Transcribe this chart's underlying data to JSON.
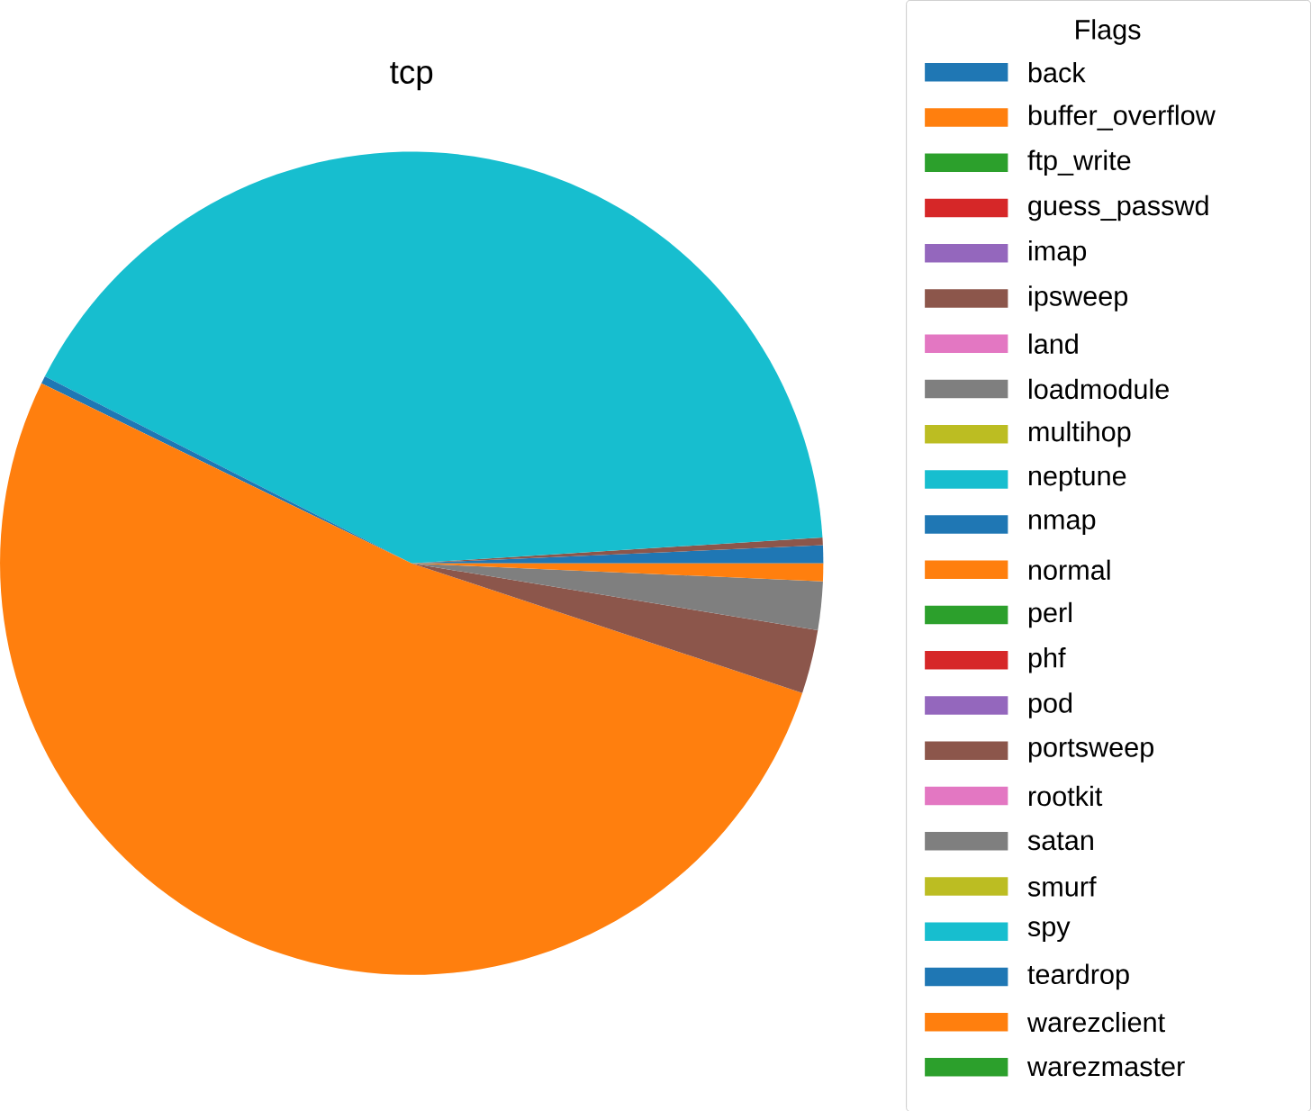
{
  "chart_data": {
    "type": "pie",
    "title": "tcp",
    "legend_title": "Flags",
    "legend": "right",
    "categories": [
      "back",
      "buffer_overflow",
      "ftp_write",
      "guess_passwd",
      "imap",
      "ipsweep",
      "land",
      "loadmodule",
      "multihop",
      "neptune",
      "nmap",
      "normal",
      "perl",
      "phf",
      "pod",
      "portsweep",
      "rootkit",
      "satan",
      "smurf",
      "spy",
      "teardrop",
      "warezclient",
      "warezmaster"
    ],
    "values": [
      0.7,
      null,
      null,
      null,
      null,
      0.3,
      null,
      null,
      null,
      41.5,
      0.3,
      52.1,
      null,
      null,
      null,
      2.5,
      null,
      1.9,
      null,
      null,
      null,
      0.7,
      null
    ],
    "colors": [
      "#1f77b4",
      "#ff7f0e",
      "#2ca02c",
      "#d62728",
      "#9467bd",
      "#8c564b",
      "#e377c2",
      "#7f7f7f",
      "#bcbd22",
      "#17becf",
      "#1f77b4",
      "#ff7f0e",
      "#2ca02c",
      "#d62728",
      "#9467bd",
      "#8c564b",
      "#e377c2",
      "#7f7f7f",
      "#bcbd22",
      "#17becf",
      "#1f77b4",
      "#ff7f0e",
      "#2ca02c"
    ]
  }
}
